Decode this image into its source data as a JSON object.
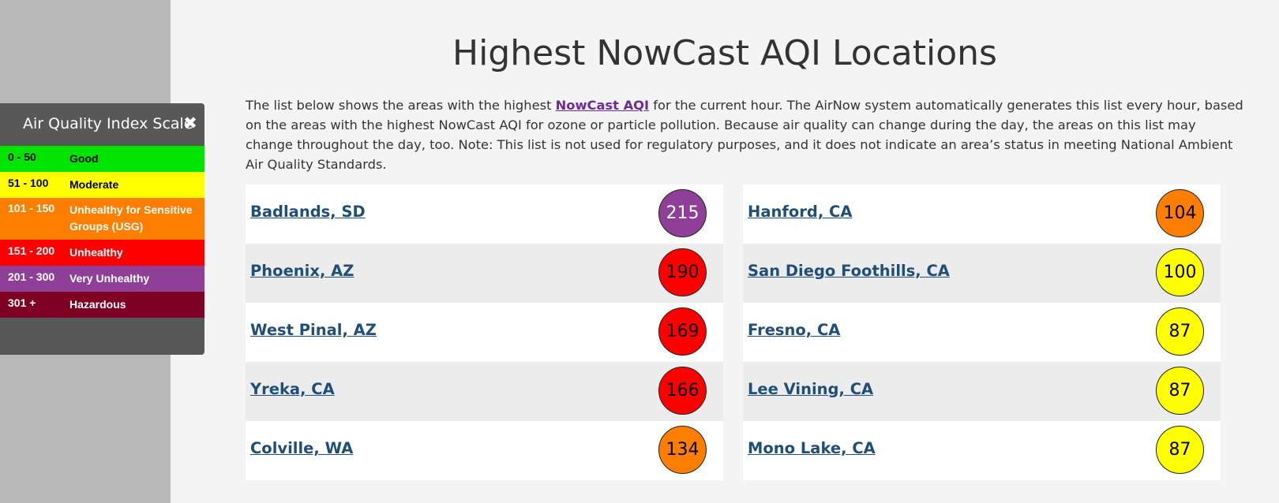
{
  "page": {
    "title": "Highest NowCast AQI Locations",
    "intro_before": "The list below shows the areas with the highest ",
    "intro_link": "NowCast AQI",
    "intro_after": " for the current hour. The AirNow system automatically generates this list every hour, based on the areas with the highest NowCast AQI for ozone or particle pollution. Because air quality can change during the day, the areas on this list may change throughout the day, too. Note: This list is not used for regulatory purposes, and it does not indicate an area’s status in meeting National Ambient Air Quality Standards."
  },
  "scale": {
    "title": "Air Quality Index Scale",
    "close_icon": "close-icon",
    "rows": [
      {
        "range": "0 - 50",
        "label": "Good",
        "bg": "#00e400",
        "fg": "#000000"
      },
      {
        "range": "51 - 100",
        "label": "Moderate",
        "bg": "#ffff00",
        "fg": "#000000"
      },
      {
        "range": "101 - 150",
        "label": "Unhealthy for Sensitive Groups (USG)",
        "bg": "#ff7e00",
        "fg": "#ffffff"
      },
      {
        "range": "151 - 200",
        "label": "Unhealthy",
        "bg": "#ff0000",
        "fg": "#ffffff"
      },
      {
        "range": "201 - 300",
        "label": "Very Unhealthy",
        "bg": "#8f3f97",
        "fg": "#ffffff"
      },
      {
        "range": "301 +",
        "label": "Hazardous",
        "bg": "#7e0023",
        "fg": "#ffffff"
      }
    ]
  },
  "locations": {
    "left": [
      {
        "name": "Badlands, SD",
        "aqi": "215",
        "color": "#8f3f97",
        "text_color": "#ffffff"
      },
      {
        "name": "Phoenix, AZ",
        "aqi": "190",
        "color": "#ff0000",
        "text_color": "#000000"
      },
      {
        "name": "West Pinal, AZ",
        "aqi": "169",
        "color": "#ff0000",
        "text_color": "#000000"
      },
      {
        "name": "Yreka, CA",
        "aqi": "166",
        "color": "#ff0000",
        "text_color": "#000000"
      },
      {
        "name": "Colville, WA",
        "aqi": "134",
        "color": "#ff7e00",
        "text_color": "#000000"
      }
    ],
    "right": [
      {
        "name": "Hanford, CA",
        "aqi": "104",
        "color": "#ff7e00",
        "text_color": "#000000"
      },
      {
        "name": "San Diego Foothills, CA",
        "aqi": "100",
        "color": "#ffff00",
        "text_color": "#000000"
      },
      {
        "name": "Fresno, CA",
        "aqi": "87",
        "color": "#ffff00",
        "text_color": "#000000"
      },
      {
        "name": "Lee Vining, CA",
        "aqi": "87",
        "color": "#ffff00",
        "text_color": "#000000"
      },
      {
        "name": "Mono Lake, CA",
        "aqi": "87",
        "color": "#ffff00",
        "text_color": "#000000"
      }
    ]
  }
}
